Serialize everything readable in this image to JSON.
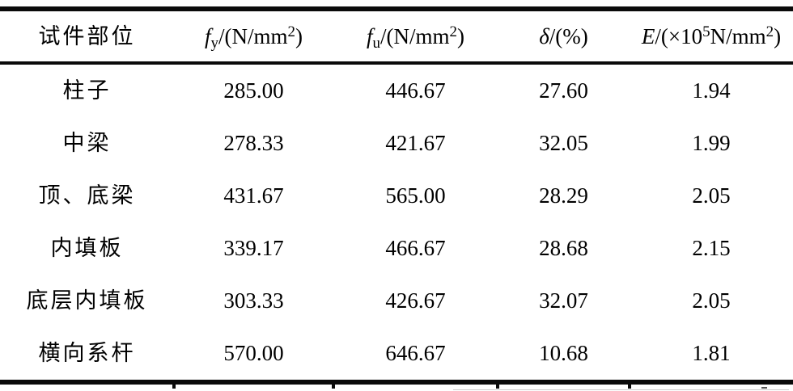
{
  "table": {
    "columns": [
      {
        "id": "part",
        "parts": [
          {
            "t": "试件部位"
          }
        ]
      },
      {
        "id": "fy",
        "parts": [
          {
            "t": "f"
          },
          {
            "t": "y"
          },
          {
            "t": "/(N/mm"
          },
          {
            "t": "2"
          },
          {
            "t": ")"
          }
        ]
      },
      {
        "id": "fu",
        "parts": [
          {
            "t": "f"
          },
          {
            "t": "u"
          },
          {
            "t": "/(N/mm"
          },
          {
            "t": "2"
          },
          {
            "t": ")"
          }
        ]
      },
      {
        "id": "delta",
        "parts": [
          {
            "t": "δ"
          },
          {
            "t": "/(%)"
          }
        ]
      },
      {
        "id": "E",
        "parts": [
          {
            "t": "E"
          },
          {
            "t": "/(×10"
          },
          {
            "t": "5"
          },
          {
            "t": "N/mm"
          },
          {
            "t": "2"
          },
          {
            "t": ")"
          }
        ]
      }
    ],
    "rows": [
      {
        "part": "柱子",
        "fy": "285.00",
        "fu": "446.67",
        "delta": "27.60",
        "e": "1.94"
      },
      {
        "part": "中梁",
        "fy": "278.33",
        "fu": "421.67",
        "delta": "32.05",
        "e": "1.99"
      },
      {
        "part": "顶、底梁",
        "fy": "431.67",
        "fu": "565.00",
        "delta": "28.29",
        "e": "2.05"
      },
      {
        "part": "内填板",
        "fy": "339.17",
        "fu": "466.67",
        "delta": "28.68",
        "e": "2.15"
      },
      {
        "part": "底层内填板",
        "fy": "303.33",
        "fu": "426.67",
        "delta": "32.07",
        "e": "2.05"
      },
      {
        "part": "横向系杆",
        "fy": "570.00",
        "fu": "646.67",
        "delta": "10.68",
        "e": "1.81"
      }
    ]
  }
}
